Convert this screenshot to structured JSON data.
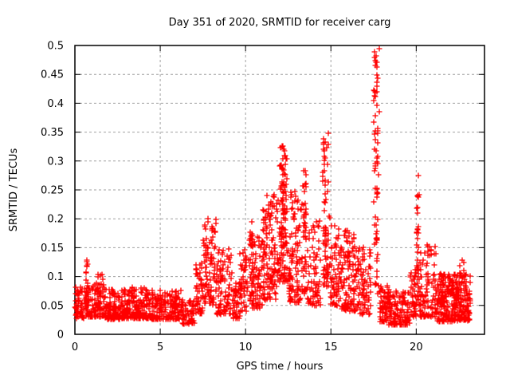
{
  "chart_data": {
    "type": "scatter",
    "title": "Day 351 of 2020, SRMTID for receiver carg",
    "xlabel": "GPS time / hours",
    "ylabel": "SRMTID / TECUs",
    "xlim": [
      0,
      24
    ],
    "ylim": [
      0,
      0.5
    ],
    "xticks": [
      0,
      5,
      10,
      15,
      20
    ],
    "xtick_labels": [
      "0",
      "5",
      "10",
      "15",
      "20"
    ],
    "yticks": [
      0,
      0.05,
      0.1,
      0.15,
      0.2,
      0.25,
      0.3,
      0.35,
      0.4,
      0.45,
      0.5
    ],
    "ytick_labels": [
      "0",
      "0.05",
      "0.1",
      "0.15",
      "0.2",
      "0.25",
      "0.3",
      "0.35",
      "0.4",
      "0.45",
      "0.5"
    ],
    "grid": true,
    "grid_style": "dashed",
    "grid_color": "#a0a0a0",
    "frame_color": "#000000",
    "marker": {
      "shape": "plus",
      "color": "#ff0000",
      "size": 7
    },
    "legend": "none",
    "seed": 1351,
    "clusters": [
      [
        "b",
        0.0,
        0.7,
        75,
        0.028,
        0.082,
        1.6
      ],
      [
        "c",
        0.58,
        0.85,
        24,
        0.04,
        0.128,
        1.1
      ],
      [
        "b",
        0.7,
        1.25,
        50,
        0.03,
        0.088,
        1.6
      ],
      [
        "b",
        1.25,
        1.75,
        60,
        0.03,
        0.105,
        1.7
      ],
      [
        "b",
        1.75,
        3.0,
        150,
        0.026,
        0.078,
        1.6
      ],
      [
        "b",
        3.0,
        4.5,
        170,
        0.028,
        0.082,
        1.7
      ],
      [
        "b",
        4.5,
        6.3,
        200,
        0.026,
        0.076,
        1.7
      ],
      [
        "b",
        6.3,
        7.05,
        60,
        0.018,
        0.06,
        1.5
      ],
      [
        "b",
        7.05,
        7.5,
        48,
        0.035,
        0.125,
        1.5
      ],
      [
        "c",
        7.5,
        7.8,
        32,
        0.05,
        0.19,
        1.2
      ],
      [
        "b",
        7.7,
        8.3,
        60,
        0.05,
        0.205,
        1.4
      ],
      [
        "b",
        8.3,
        9.2,
        90,
        0.035,
        0.148,
        1.6
      ],
      [
        "b",
        9.2,
        9.65,
        42,
        0.028,
        0.09,
        1.6
      ],
      [
        "b",
        9.65,
        10.1,
        48,
        0.04,
        0.15,
        1.5
      ],
      [
        "c",
        10.1,
        10.5,
        42,
        0.05,
        0.2,
        1.3
      ],
      [
        "b",
        10.4,
        11.0,
        65,
        0.045,
        0.175,
        1.5
      ],
      [
        "c",
        10.95,
        11.25,
        38,
        0.06,
        0.22,
        1.3
      ],
      [
        "b",
        11.2,
        11.9,
        100,
        0.06,
        0.245,
        1.5
      ],
      [
        "c",
        11.9,
        12.55,
        135,
        0.09,
        0.327,
        1.35
      ],
      [
        "b",
        12.55,
        13.2,
        100,
        0.055,
        0.25,
        1.6
      ],
      [
        "c",
        13.25,
        13.65,
        58,
        0.07,
        0.3,
        1.4
      ],
      [
        "b",
        13.65,
        14.4,
        75,
        0.05,
        0.2,
        1.6
      ],
      [
        "c",
        14.45,
        14.95,
        78,
        0.08,
        0.358,
        1.5
      ],
      [
        "b",
        14.95,
        15.6,
        70,
        0.05,
        0.19,
        1.6
      ],
      [
        "b",
        15.6,
        16.6,
        120,
        0.04,
        0.185,
        1.7
      ],
      [
        "b",
        16.6,
        17.35,
        75,
        0.035,
        0.155,
        1.7
      ],
      [
        "c",
        17.45,
        17.85,
        75,
        0.07,
        0.5,
        1.15
      ],
      [
        "b",
        17.85,
        18.4,
        65,
        0.022,
        0.085,
        1.6
      ],
      [
        "b",
        18.4,
        19.6,
        130,
        0.016,
        0.075,
        1.6
      ],
      [
        "b",
        19.6,
        20.0,
        42,
        0.03,
        0.115,
        1.5
      ],
      [
        "c",
        20.0,
        20.2,
        36,
        0.05,
        0.29,
        1.2
      ],
      [
        "b",
        20.2,
        21.2,
        100,
        0.03,
        0.155,
        1.8
      ],
      [
        "b",
        21.2,
        22.1,
        140,
        0.022,
        0.105,
        1.6
      ],
      [
        "b",
        22.1,
        23.15,
        200,
        0.024,
        0.105,
        1.5
      ],
      [
        "b",
        22.55,
        23.0,
        8,
        0.1,
        0.135,
        1.0
      ]
    ]
  }
}
